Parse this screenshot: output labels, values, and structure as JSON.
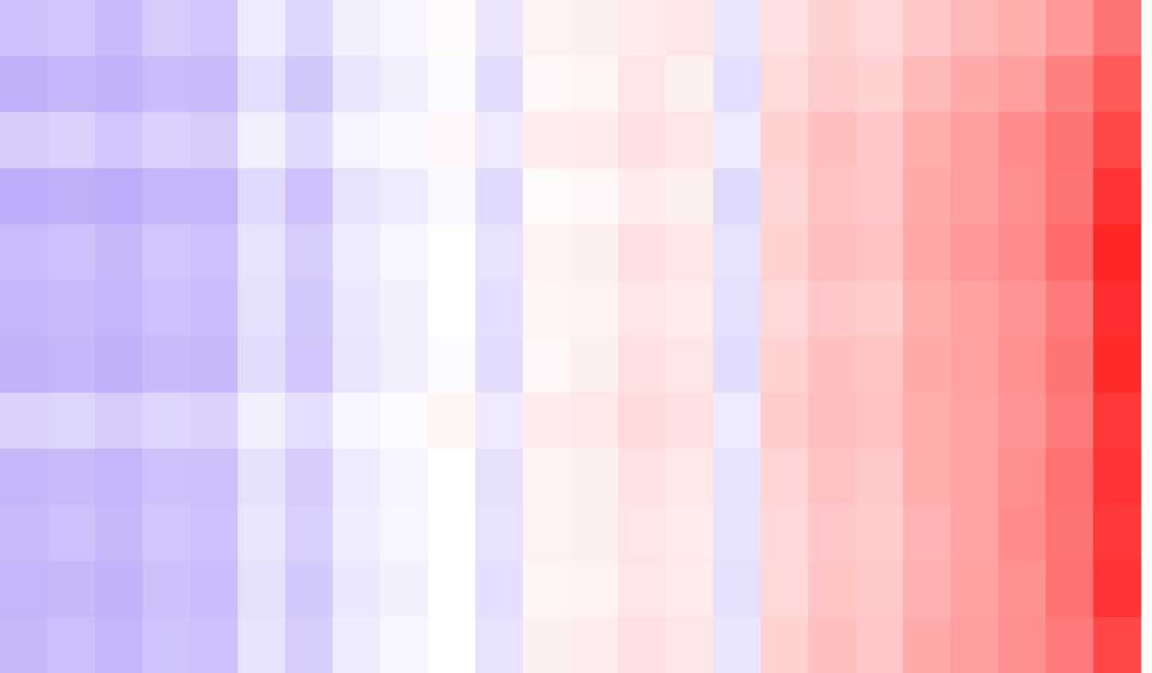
{
  "chart_data": {
    "type": "heatmap",
    "zlim": [
      -1,
      1
    ],
    "colors": [
      "#5a2ff0",
      "#ffffff",
      "#ff0000"
    ],
    "values": [
      [
        -0.3,
        -0.28,
        -0.33,
        -0.25,
        -0.28,
        -0.1,
        -0.2,
        -0.08,
        -0.05,
        0.02,
        -0.12,
        0.05,
        0.06,
        0.08,
        0.1,
        -0.12,
        0.12,
        0.18,
        0.15,
        0.22,
        0.28,
        0.32,
        0.4,
        0.55
      ],
      [
        -0.38,
        -0.35,
        -0.37,
        -0.32,
        -0.33,
        -0.16,
        -0.27,
        -0.12,
        -0.08,
        -0.02,
        -0.17,
        0.03,
        0.04,
        0.1,
        0.06,
        -0.16,
        0.14,
        0.2,
        0.18,
        0.28,
        0.33,
        0.38,
        0.5,
        0.65
      ],
      [
        -0.25,
        -0.22,
        -0.28,
        -0.22,
        -0.25,
        -0.08,
        -0.18,
        -0.06,
        -0.03,
        0.03,
        -0.1,
        0.07,
        0.08,
        0.12,
        0.1,
        -0.1,
        0.18,
        0.25,
        0.22,
        0.32,
        0.38,
        0.45,
        0.55,
        0.72
      ],
      [
        -0.4,
        -0.38,
        -0.4,
        -0.35,
        -0.35,
        -0.18,
        -0.3,
        -0.14,
        -0.1,
        -0.03,
        -0.18,
        0.02,
        0.03,
        0.08,
        0.06,
        -0.18,
        0.16,
        0.24,
        0.22,
        0.33,
        0.38,
        0.44,
        0.55,
        0.8
      ],
      [
        -0.32,
        -0.3,
        -0.34,
        -0.28,
        -0.3,
        -0.14,
        -0.24,
        -0.1,
        -0.05,
        0.01,
        -0.14,
        0.05,
        0.06,
        0.12,
        0.1,
        -0.14,
        0.18,
        0.26,
        0.24,
        0.35,
        0.4,
        0.46,
        0.58,
        0.85
      ],
      [
        -0.36,
        -0.33,
        -0.36,
        -0.3,
        -0.32,
        -0.15,
        -0.26,
        -0.11,
        -0.07,
        0,
        -0.16,
        0.04,
        0.05,
        0.1,
        0.08,
        -0.15,
        0.15,
        0.22,
        0.2,
        0.32,
        0.37,
        0.42,
        0.52,
        0.82
      ],
      [
        -0.37,
        -0.35,
        -0.38,
        -0.33,
        -0.34,
        -0.17,
        -0.28,
        -0.13,
        -0.08,
        -0.02,
        -0.17,
        0.03,
        0.06,
        0.12,
        0.1,
        -0.17,
        0.18,
        0.25,
        0.23,
        0.33,
        0.37,
        0.43,
        0.54,
        0.83
      ],
      [
        -0.22,
        -0.2,
        -0.25,
        -0.2,
        -0.22,
        -0.08,
        -0.16,
        -0.05,
        -0.02,
        0.04,
        -0.1,
        0.08,
        0.09,
        0.14,
        0.12,
        -0.1,
        0.2,
        0.26,
        0.24,
        0.32,
        0.36,
        0.42,
        0.52,
        0.78
      ],
      [
        -0.35,
        -0.33,
        -0.36,
        -0.3,
        -0.31,
        -0.15,
        -0.25,
        -0.1,
        -0.06,
        0,
        -0.15,
        0.05,
        0.06,
        0.11,
        0.09,
        -0.14,
        0.17,
        0.24,
        0.21,
        0.32,
        0.36,
        0.44,
        0.56,
        0.8
      ],
      [
        -0.33,
        -0.3,
        -0.34,
        -0.28,
        -0.3,
        -0.13,
        -0.23,
        -0.09,
        -0.05,
        0.01,
        -0.14,
        0.05,
        0.06,
        0.1,
        0.08,
        -0.14,
        0.15,
        0.22,
        0.2,
        0.3,
        0.36,
        0.45,
        0.55,
        0.78
      ],
      [
        -0.36,
        -0.34,
        -0.37,
        -0.31,
        -0.32,
        -0.15,
        -0.26,
        -0.11,
        -0.07,
        -0.01,
        -0.16,
        0.04,
        0.05,
        0.1,
        0.08,
        -0.15,
        0.15,
        0.23,
        0.21,
        0.31,
        0.37,
        0.43,
        0.56,
        0.8
      ],
      [
        -0.34,
        -0.31,
        -0.35,
        -0.29,
        -0.3,
        -0.14,
        -0.24,
        -0.1,
        -0.05,
        0.01,
        -0.14,
        0.06,
        0.07,
        0.12,
        0.1,
        -0.13,
        0.18,
        0.25,
        0.22,
        0.33,
        0.38,
        0.44,
        0.52,
        0.72
      ]
    ]
  }
}
